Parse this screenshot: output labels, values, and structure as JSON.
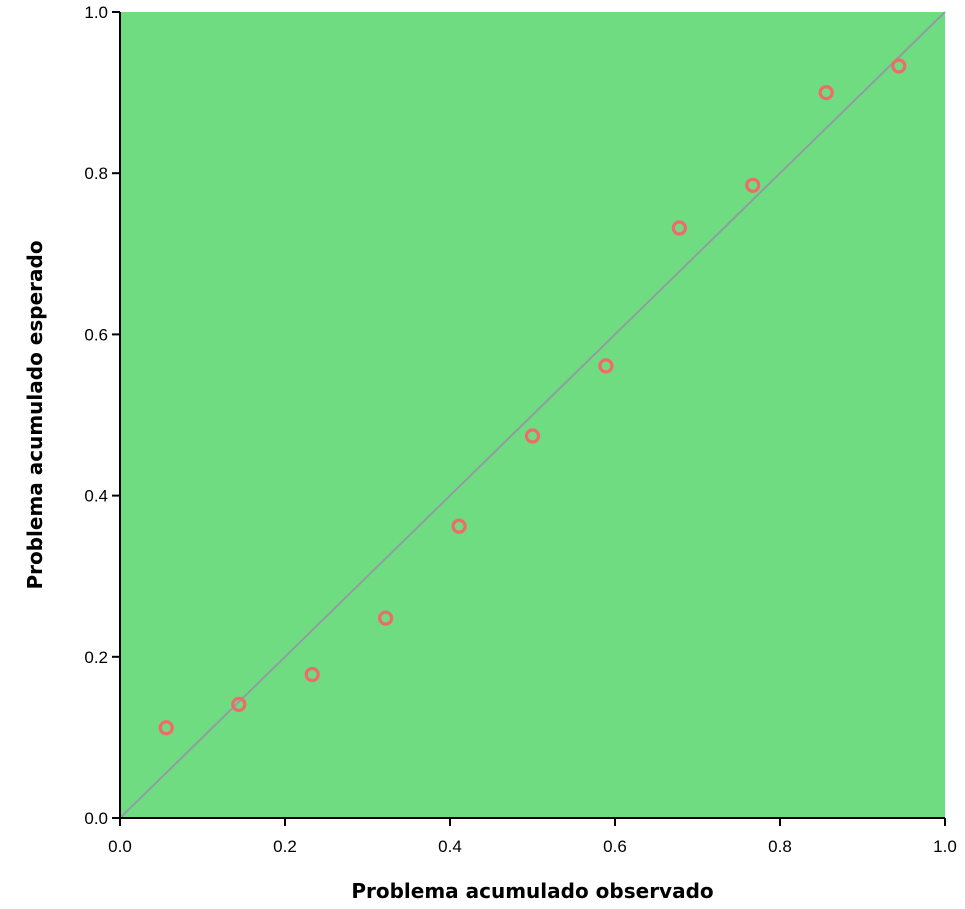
{
  "chart_data": {
    "type": "scatter",
    "title": "",
    "xlabel": "Problema acumulado observado",
    "ylabel": "Problema acumulado esperado",
    "xlim": [
      0.0,
      1.0
    ],
    "ylim": [
      0.0,
      1.0
    ],
    "xticks": [
      "0.0",
      "0.2",
      "0.4",
      "0.6",
      "0.8",
      "1.0"
    ],
    "yticks": [
      "0.0",
      "0.2",
      "0.4",
      "0.6",
      "0.8",
      "1.0"
    ],
    "grid": false,
    "legend": "none",
    "reference_line": {
      "from": [
        0.0,
        0.0
      ],
      "to": [
        1.0,
        1.0
      ]
    },
    "points": [
      {
        "x": 0.056,
        "y": 0.112
      },
      {
        "x": 0.144,
        "y": 0.141
      },
      {
        "x": 0.233,
        "y": 0.178
      },
      {
        "x": 0.322,
        "y": 0.248
      },
      {
        "x": 0.411,
        "y": 0.362
      },
      {
        "x": 0.5,
        "y": 0.474
      },
      {
        "x": 0.589,
        "y": 0.561
      },
      {
        "x": 0.678,
        "y": 0.732
      },
      {
        "x": 0.767,
        "y": 0.785
      },
      {
        "x": 0.856,
        "y": 0.9
      },
      {
        "x": 0.944,
        "y": 0.933
      }
    ],
    "colors": {
      "plot_background": "#70dc82",
      "marker": "#f06a6a",
      "reference_line": "#8f9f9f",
      "axis": "#000000"
    }
  }
}
